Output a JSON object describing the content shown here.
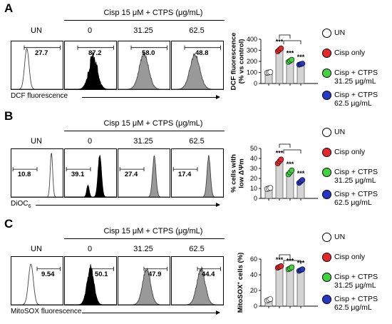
{
  "header_prefix": "Cisp 15 μM + CTPS (μg/mL)",
  "columns": [
    "UN",
    "0",
    "31.25",
    "62.5"
  ],
  "legend": [
    {
      "label": "UN",
      "color": "#ffffff"
    },
    {
      "label": "Cisp only",
      "color": "#e8262a"
    },
    {
      "label": "Cisp + CTPS\n31.25 μg/mL",
      "color": "#3fd33d"
    },
    {
      "label": "Cisp + CTPS\n62.5 μg/mL",
      "color": "#2437c7"
    }
  ],
  "panels": [
    {
      "letter": "A",
      "xlabel": "DCF fluorescence",
      "hist_values": [
        "27.7",
        "87.2",
        "58.0",
        "48.8"
      ],
      "chart_data": {
        "type": "bar",
        "ylabel_lines": [
          "DCF fluorescence",
          "(% vs control)"
        ],
        "ylim": [
          0,
          400
        ],
        "yticks": [
          0,
          100,
          200,
          300,
          400
        ],
        "categories": [
          "UN",
          "Cisp only",
          "Cisp + CTPS 31.25 μg/mL",
          "Cisp + CTPS 62.5 μg/mL"
        ],
        "values": [
          100,
          305,
          205,
          175
        ],
        "points": [
          [
            97,
            100,
            103
          ],
          [
            290,
            305,
            318
          ],
          [
            195,
            205,
            215
          ],
          [
            170,
            175,
            180
          ]
        ],
        "significance": [
          "",
          "***",
          "***",
          "***"
        ]
      }
    },
    {
      "letter": "B",
      "xlabel": "DiOC",
      "xlabel_sub": "6",
      "hist_values": [
        "10.8",
        "39.1",
        "27.4",
        "17.4"
      ],
      "chart_data": {
        "type": "bar",
        "ylabel_lines": [
          "% cells with",
          "low ΔΨm"
        ],
        "ylim": [
          0,
          50
        ],
        "yticks": [
          0,
          10,
          20,
          30,
          40,
          50
        ],
        "categories": [
          "UN",
          "Cisp only",
          "Cisp + CTPS 31.25 μg/mL",
          "Cisp + CTPS 62.5 μg/mL"
        ],
        "values": [
          10,
          37,
          26,
          17
        ],
        "points": [
          [
            9.5,
            10,
            10.5
          ],
          [
            35,
            37,
            39
          ],
          [
            24,
            26,
            28
          ],
          [
            15.5,
            17,
            18.5
          ]
        ],
        "significance": [
          "",
          "***",
          "***",
          "***"
        ]
      }
    },
    {
      "letter": "C",
      "xlabel": "MitoSOX fluorescence",
      "hist_values": [
        "9.54",
        "50.1",
        "47.9",
        "44.4"
      ],
      "chart_data": {
        "type": "bar",
        "ylabel_html": "MitoSOX",
        "ylabel_sup": "+",
        "ylabel_rest": " cells (%)",
        "ylim": [
          0,
          60
        ],
        "yticks": [
          0,
          20,
          40,
          60
        ],
        "categories": [
          "UN",
          "Cisp only",
          "Cisp + CTPS 31.25 μg/mL",
          "Cisp + CTPS 62.5 μg/mL"
        ],
        "values": [
          8,
          50,
          48,
          46
        ],
        "points": [
          [
            7,
            8,
            9
          ],
          [
            49,
            50,
            51
          ],
          [
            47,
            48,
            49.5
          ],
          [
            45,
            46,
            47
          ]
        ],
        "significance": [
          "",
          "***",
          "***",
          "***"
        ]
      }
    }
  ]
}
